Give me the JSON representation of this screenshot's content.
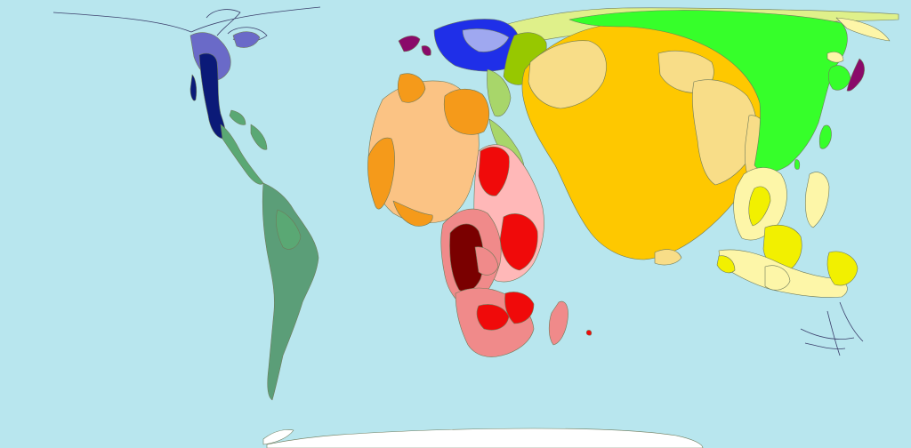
{
  "map": {
    "type": "cartogram",
    "background_color": "#b8e6ee",
    "regions": [
      {
        "key": "north-america",
        "color": "#0b1a78"
      },
      {
        "key": "north-america-light",
        "color": "#6a6ac8"
      },
      {
        "key": "central-america",
        "color": "#5aa874"
      },
      {
        "key": "south-america",
        "color": "#5b9e78"
      },
      {
        "key": "western-europe",
        "color": "#1f2fe8"
      },
      {
        "key": "western-europe-light",
        "color": "#9fa8f0"
      },
      {
        "key": "eastern-europe",
        "color": "#97c800"
      },
      {
        "key": "russia-central-asia",
        "color": "#dff08a"
      },
      {
        "key": "north-africa",
        "color": "#fbc384"
      },
      {
        "key": "north-africa-dark",
        "color": "#f59a1a"
      },
      {
        "key": "middle-east",
        "color": "#a8d66a"
      },
      {
        "key": "east-africa",
        "color": "#ffb8b8"
      },
      {
        "key": "east-africa-red",
        "color": "#f00a0a"
      },
      {
        "key": "central-africa",
        "color": "#7a0000"
      },
      {
        "key": "southern-africa",
        "color": "#f08a8a"
      },
      {
        "key": "south-asia",
        "color": "#fec800"
      },
      {
        "key": "south-asia-light",
        "color": "#f8dd88"
      },
      {
        "key": "east-asia",
        "color": "#36ff2a"
      },
      {
        "key": "japan",
        "color": "#8a0a6a"
      },
      {
        "key": "asia-pacific",
        "color": "#fdf6a8"
      },
      {
        "key": "asia-pacific-yellow",
        "color": "#f2f000"
      },
      {
        "key": "antarctica",
        "color": "#ffffff"
      }
    ]
  }
}
